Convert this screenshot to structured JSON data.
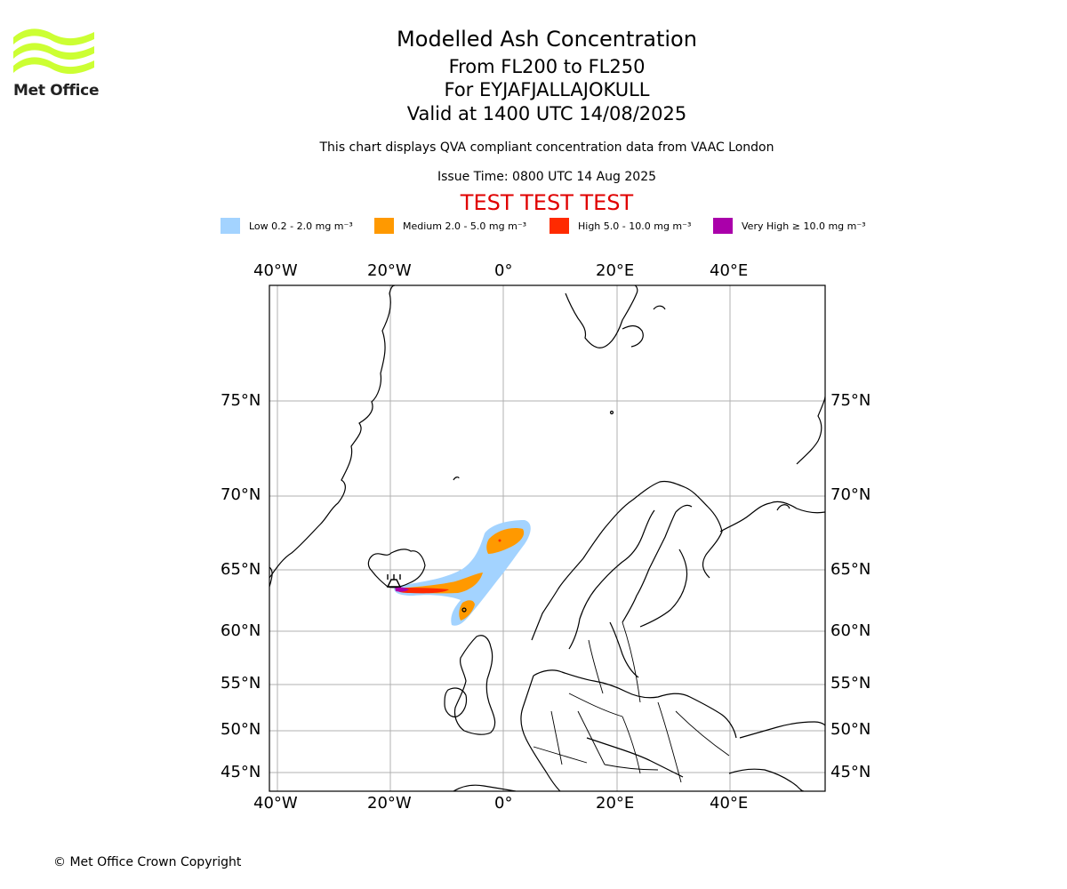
{
  "header": {
    "title": "Modelled Ash Concentration",
    "subtitle_levels": "From FL200 to FL250",
    "subtitle_volcano": "For EYJAFJALLAJOKULL",
    "subtitle_valid": "Valid at 1400 UTC 14/08/2025",
    "description": "This chart displays QVA compliant concentration data from VAAC London",
    "issue_time": "Issue Time: 0800 UTC 14 Aug 2025",
    "test_banner": "TEST TEST TEST"
  },
  "logo": {
    "text": "Met Office",
    "color": "#ccff33"
  },
  "legend": [
    {
      "label": "Low 0.2 - 2.0 mg m⁻³",
      "color": "#a3d3ff"
    },
    {
      "label": "Medium 2.0 - 5.0 mg m⁻³",
      "color": "#ff9900"
    },
    {
      "label": "High 5.0 - 10.0 mg m⁻³",
      "color": "#ff2a00"
    },
    {
      "label": "Very High ≥ 10.0 mg m⁻³",
      "color": "#aa00aa"
    }
  ],
  "map": {
    "lon_ticks": [
      "40°W",
      "20°W",
      "0°",
      "20°E",
      "40°E"
    ],
    "lat_ticks": [
      "75°N",
      "70°N",
      "65°N",
      "60°N",
      "55°N",
      "50°N",
      "45°N"
    ],
    "grid": true,
    "volcano_icon": "volcano-marker-icon"
  },
  "footer": {
    "copyright": "© Met Office Crown Copyright"
  }
}
